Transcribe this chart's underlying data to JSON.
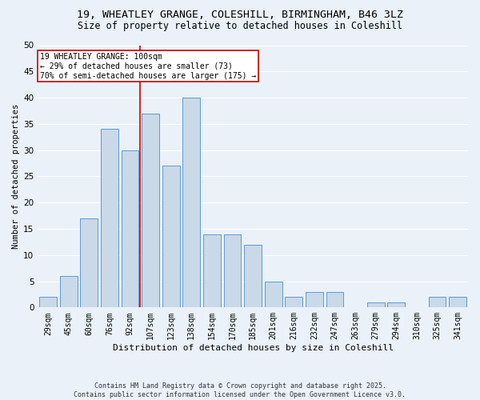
{
  "title1": "19, WHEATLEY GRANGE, COLESHILL, BIRMINGHAM, B46 3LZ",
  "title2": "Size of property relative to detached houses in Coleshill",
  "xlabel": "Distribution of detached houses by size in Coleshill",
  "ylabel": "Number of detached properties",
  "bar_labels": [
    "29sqm",
    "45sqm",
    "60sqm",
    "76sqm",
    "92sqm",
    "107sqm",
    "123sqm",
    "138sqm",
    "154sqm",
    "170sqm",
    "185sqm",
    "201sqm",
    "216sqm",
    "232sqm",
    "247sqm",
    "263sqm",
    "279sqm",
    "294sqm",
    "310sqm",
    "325sqm",
    "341sqm"
  ],
  "bar_values": [
    2,
    6,
    17,
    34,
    30,
    37,
    27,
    40,
    14,
    14,
    12,
    5,
    2,
    3,
    3,
    0,
    1,
    1,
    0,
    2,
    2
  ],
  "bar_color": "#c9d9e8",
  "bar_edge_color": "#5b9bd5",
  "vline_x": 4.5,
  "vline_color": "#cc0000",
  "annotation_line1": "19 WHEATLEY GRANGE: 100sqm",
  "annotation_line2": "← 29% of detached houses are smaller (73)",
  "annotation_line3": "70% of semi-detached houses are larger (175) →",
  "annotation_box_color": "#ffffff",
  "annotation_box_edge": "#cc0000",
  "ylim": [
    0,
    50
  ],
  "yticks": [
    0,
    5,
    10,
    15,
    20,
    25,
    30,
    35,
    40,
    45,
    50
  ],
  "footnote": "Contains HM Land Registry data © Crown copyright and database right 2025.\nContains public sector information licensed under the Open Government Licence v3.0.",
  "bg_color": "#eaf1f8",
  "grid_color": "#ffffff",
  "title1_fontsize": 9.5,
  "title2_fontsize": 8.5,
  "xlabel_fontsize": 8,
  "ylabel_fontsize": 7.5,
  "tick_fontsize": 7,
  "annot_fontsize": 7,
  "footnote_fontsize": 6
}
